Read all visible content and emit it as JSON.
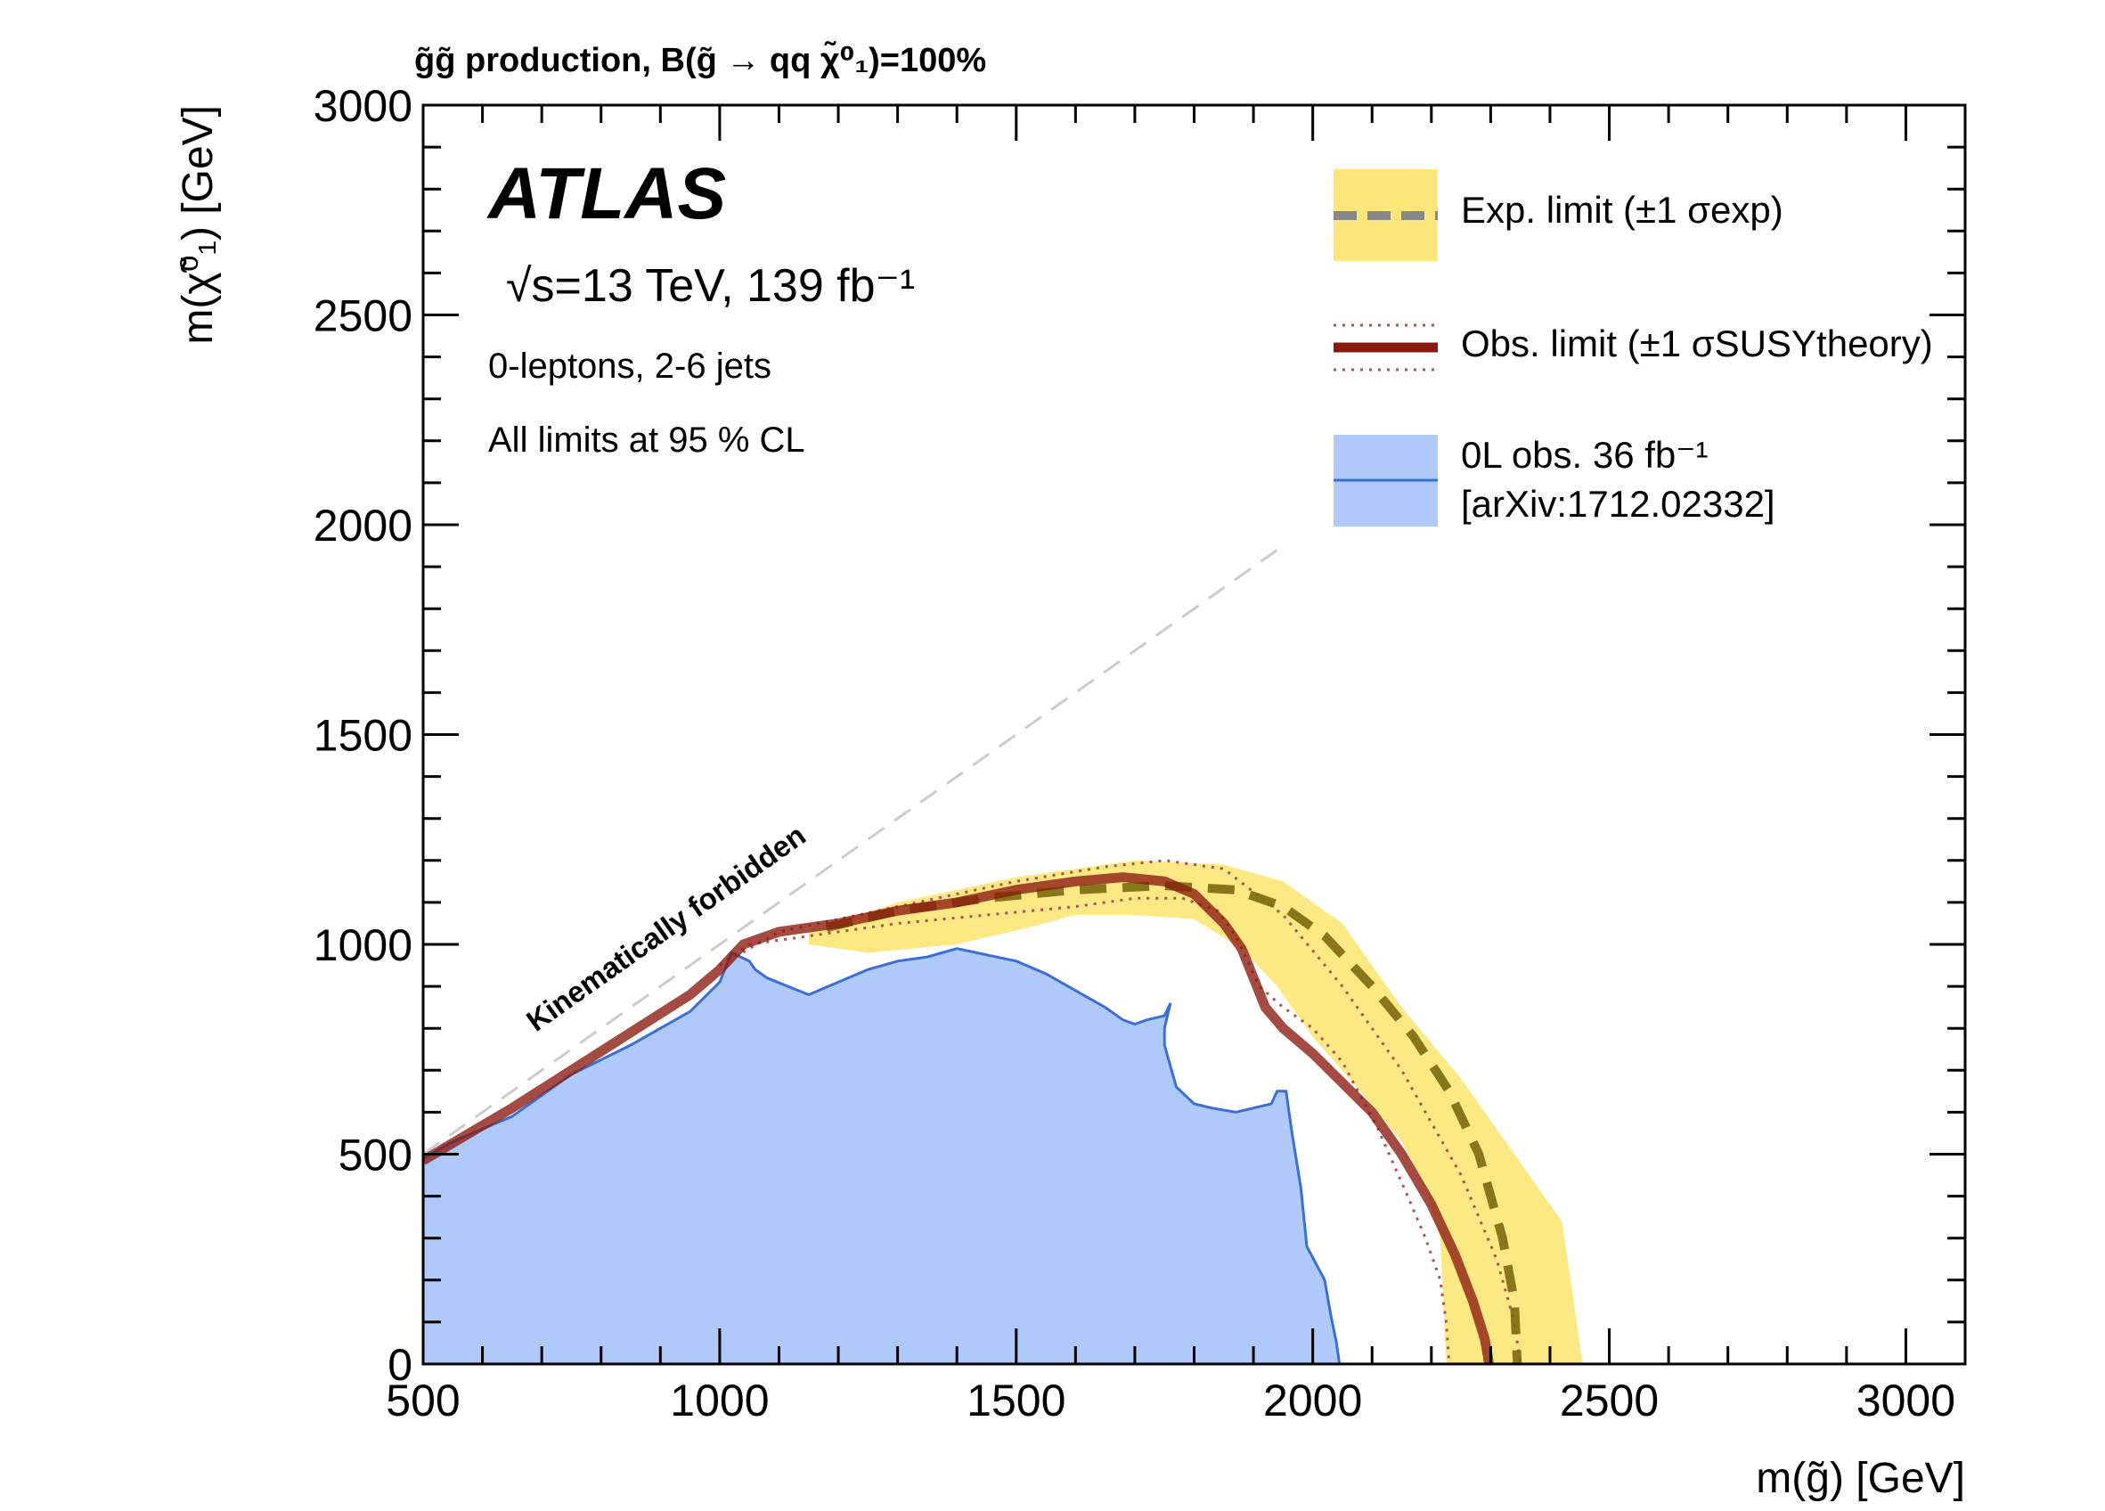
{
  "chart_data": {
    "type": "area",
    "title": "g̃g̃ production,  B(g̃ → qq χ̃⁰₁)=100%",
    "xlabel": "m(g̃) [GeV]",
    "ylabel": "m(χ̃⁰₁) [GeV]",
    "xlim": [
      500,
      3100
    ],
    "ylim": [
      0,
      3000
    ],
    "x_ticks": [
      500,
      1000,
      1500,
      2000,
      2500,
      3000
    ],
    "y_ticks": [
      0,
      500,
      1000,
      1500,
      2000,
      2500,
      3000
    ],
    "experiment": "ATLAS",
    "energy_label": "√s=13 TeV, 139 fb⁻¹",
    "annotations": [
      "0-leptons, 2-6 jets",
      "All limits at 95 % CL",
      "Kinematically forbidden"
    ],
    "legend_position": "top-right",
    "legend": [
      {
        "label": "Exp. limit (±1 σexp)",
        "color": "#7f7f7f",
        "band_color": "#fde77a"
      },
      {
        "label": "Obs. limit (±1 σSUSYtheory)",
        "color": "#8b1a0e"
      },
      {
        "label": "0L obs. 36 fb⁻¹",
        "label2": "[arXiv:1712.02332]",
        "color": "#3b6fd8",
        "band_color": "#afc9fb"
      }
    ],
    "kinematic_boundary": {
      "x": [
        500,
        1950
      ],
      "y": [
        500,
        1950
      ]
    },
    "exp_band_upper": {
      "x": [
        1150,
        1300,
        1500,
        1700,
        1850,
        1950,
        2050,
        2150,
        2250,
        2350,
        2420,
        2440,
        2455
      ],
      "y": [
        1030,
        1100,
        1160,
        1200,
        1190,
        1150,
        1050,
        850,
        680,
        480,
        340,
        150,
        0
      ]
    },
    "exp_band_lower": {
      "x": [
        2225,
        2220,
        2215,
        2190,
        2150,
        2080,
        2000,
        1940,
        1880,
        1800,
        1700,
        1600,
        1520,
        1400,
        1250,
        1150
      ],
      "y": [
        0,
        150,
        300,
        420,
        530,
        650,
        780,
        900,
        990,
        1060,
        1070,
        1070,
        1040,
        1000,
        980,
        1000
      ]
    },
    "series": [
      {
        "name": "Exp. limit (±1 σexp)",
        "x": [
          1180,
          1300,
          1450,
          1600,
          1750,
          1870,
          1950,
          2020,
          2100,
          2170,
          2230,
          2280,
          2320,
          2340,
          2345
        ],
        "y": [
          1040,
          1080,
          1110,
          1130,
          1140,
          1130,
          1090,
          1020,
          900,
          780,
          650,
          500,
          300,
          150,
          0
        ]
      },
      {
        "name": "Obs. limit (±1 σSUSYtheory)",
        "x": [
          500,
          560,
          650,
          750,
          850,
          950,
          1000,
          1040,
          1100,
          1200,
          1300,
          1400,
          1500,
          1600,
          1680,
          1750,
          1800,
          1850,
          1880,
          1900,
          1920,
          1950,
          2000,
          2050,
          2100,
          2150,
          2200,
          2240,
          2270,
          2290,
          2295,
          2297
        ],
        "y": [
          485,
          535,
          610,
          700,
          790,
          880,
          940,
          1000,
          1030,
          1050,
          1080,
          1100,
          1130,
          1150,
          1160,
          1150,
          1120,
          1050,
          990,
          920,
          850,
          800,
          740,
          670,
          600,
          500,
          380,
          260,
          150,
          60,
          20,
          0
        ]
      },
      {
        "name": "Obs. limit +1 σSUSYtheory",
        "x": [
          1000,
          1100,
          1300,
          1500,
          1650,
          1750,
          1850,
          1950,
          2050,
          2150,
          2250,
          2310,
          2340,
          2350
        ],
        "y": [
          950,
          1030,
          1090,
          1150,
          1185,
          1200,
          1180,
          1070,
          900,
          700,
          450,
          250,
          100,
          0
        ]
      },
      {
        "name": "Obs. limit -1 σSUSYtheory",
        "x": [
          1000,
          1050,
          1150,
          1300,
          1450,
          1600,
          1700,
          1780,
          1840,
          1870,
          1890,
          1910,
          1950,
          2000,
          2050,
          2110,
          2160,
          2190,
          2215,
          2225,
          2230
        ],
        "y": [
          950,
          1000,
          1020,
          1050,
          1070,
          1090,
          1110,
          1110,
          1080,
          1020,
          960,
          900,
          850,
          800,
          720,
          560,
          400,
          300,
          200,
          100,
          0
        ]
      },
      {
        "name": "0L obs. 36 fb⁻¹",
        "x": [
          500,
          550,
          650,
          750,
          850,
          950,
          1000,
          1020,
          1050,
          1060,
          1080,
          1150,
          1200,
          1250,
          1300,
          1350,
          1400,
          1500,
          1550,
          1600,
          1650,
          1680,
          1700,
          1720,
          1750,
          1760,
          1750,
          1750,
          1770,
          1800,
          1830,
          1870,
          1900,
          1930,
          1940,
          1955,
          1960,
          1965,
          1980,
          1990,
          2020,
          2030,
          2040,
          2045
        ],
        "y": [
          490,
          530,
          590,
          690,
          760,
          840,
          910,
          980,
          960,
          940,
          920,
          880,
          910,
          940,
          960,
          970,
          990,
          960,
          930,
          890,
          850,
          820,
          810,
          820,
          830,
          860,
          800,
          760,
          660,
          620,
          610,
          600,
          610,
          620,
          650,
          650,
          600,
          550,
          420,
          280,
          200,
          120,
          50,
          0
        ]
      }
    ]
  }
}
